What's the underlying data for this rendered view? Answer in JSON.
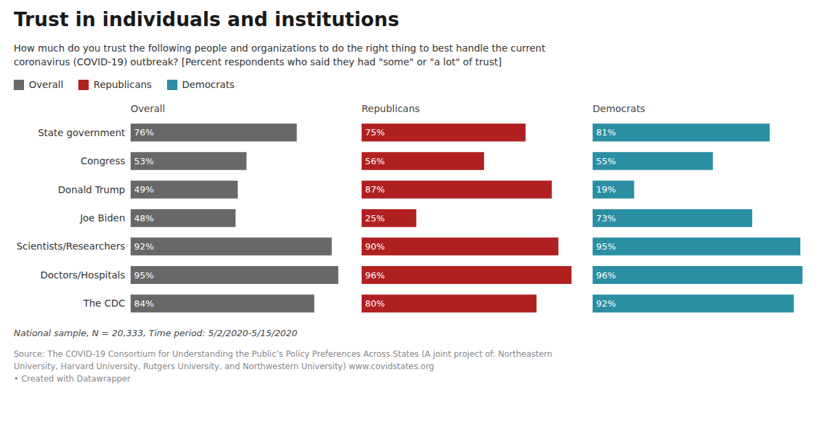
{
  "chart_data": {
    "type": "bar",
    "orientation": "horizontal",
    "title": "Trust in individuals and institutions",
    "subtitle": "How much do you trust the following people and organizations to do the right thing to best handle the current\ncoronavirus (COVID-19) outbreak? [Percent respondents who said they had \"some\" or \"a lot\" of trust]",
    "categories": [
      "State government",
      "Congress",
      "Donald Trump",
      "Joe Biden",
      "Scientists/Researchers",
      "Doctors/Hospitals",
      "The CDC"
    ],
    "series": [
      {
        "name": "Overall",
        "color": "#686868",
        "values": [
          76,
          53,
          49,
          48,
          92,
          95,
          84
        ],
        "value_labels": [
          "76%",
          "53%",
          "49%",
          "48%",
          "92%",
          "95%",
          "84%"
        ]
      },
      {
        "name": "Republicans",
        "color": "#b02020",
        "values": [
          75,
          56,
          87,
          25,
          90,
          96,
          80
        ],
        "value_labels": [
          "75%",
          "56%",
          "87%",
          "25%",
          "90%",
          "96%",
          "80%"
        ]
      },
      {
        "name": "Democrats",
        "color": "#2b8fa3",
        "values": [
          81,
          55,
          19,
          73,
          95,
          96,
          92
        ],
        "value_labels": [
          "81%",
          "55%",
          "19%",
          "73%",
          "95%",
          "96%",
          "92%"
        ]
      }
    ],
    "xlim": [
      0,
      100
    ],
    "grid": false,
    "legend": "upper left",
    "data_labels": true,
    "tick_labels": "y",
    "annotations": [
      "National sample, N = 20,333, Time period: 5/2/2020-5/15/2020",
      "Source: The COVID-19 Consortium for Understanding the Public’s Policy Preferences Across States (A joint project of: Northeastern\nUniversity, Harvard University, Rutgers University, and Northwestern University) www.covidstates.org\n• Created with Datawrapper"
    ]
  }
}
